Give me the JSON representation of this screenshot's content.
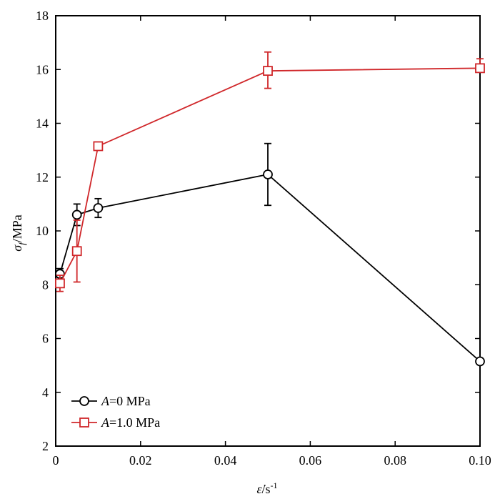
{
  "chart_data": {
    "type": "line",
    "xlabel": {
      "main": "ε̇",
      "rest": "/s",
      "sup": "-1"
    },
    "ylabel": {
      "main": "σ",
      "sub": "f",
      "rest": "/MPa"
    },
    "xlim": [
      0,
      0.1
    ],
    "ylim": [
      2,
      18
    ],
    "xticks": [
      "0",
      "0.02",
      "0.04",
      "0.06",
      "0.08",
      "0.10"
    ],
    "xtick_values": [
      0,
      0.02,
      0.04,
      0.06,
      0.08,
      0.1
    ],
    "yticks": [
      "2",
      "4",
      "6",
      "8",
      "10",
      "12",
      "14",
      "16",
      "18"
    ],
    "ytick_values": [
      2,
      4,
      6,
      8,
      10,
      12,
      14,
      16,
      18
    ],
    "grid": false,
    "legend_position": "bottom-left",
    "x": [
      0.001,
      0.005,
      0.01,
      0.05,
      0.1
    ],
    "series": [
      {
        "name": "A=0 MPa",
        "legend_var": "A",
        "legend_rest": "=0 MPa",
        "color": "#000000",
        "marker": "circle",
        "values": [
          8.4,
          10.6,
          10.85,
          12.1,
          5.15
        ],
        "err_low": [
          0.2,
          0.4,
          0.35,
          1.15,
          0
        ],
        "err_high": [
          0.2,
          0.4,
          0.35,
          1.15,
          0
        ]
      },
      {
        "name": "A=1.0 MPa",
        "legend_var": "A",
        "legend_rest": "=1.0 MPa",
        "color": "#d0272a",
        "marker": "square",
        "values": [
          8.05,
          9.25,
          13.15,
          15.95,
          16.05
        ],
        "err_low": [
          0.3,
          1.15,
          0,
          0.65,
          0
        ],
        "err_high": [
          0.3,
          1.15,
          0,
          0.7,
          0.35
        ]
      }
    ]
  }
}
